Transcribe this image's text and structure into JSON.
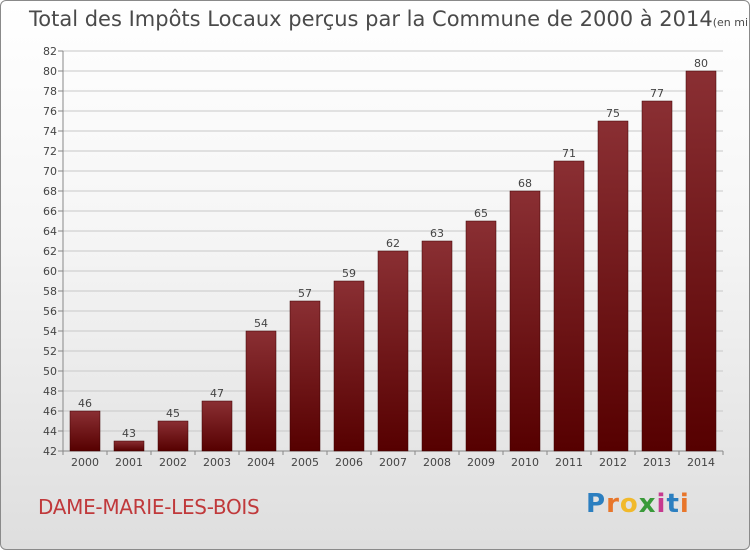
{
  "title": "Total des Impôts Locaux perçus par la Commune de 2000 à 2014",
  "title_unit": "(en milliers d'€)",
  "commune": "DAME-MARIE-LES-BOIS",
  "logo": {
    "letters": [
      "P",
      "r",
      "o",
      "x",
      "i",
      "t",
      "i"
    ],
    "colors": [
      "#2c7fc0",
      "#e8762b",
      "#f1b92b",
      "#3a9a3a",
      "#c63a8f",
      "#2c7fc0",
      "#e8762b"
    ]
  },
  "colors": {
    "bar_top": "#8a2f33",
    "bar_bottom": "#560000",
    "grid": "#c8c8c8",
    "text": "#444444",
    "commune": "#c0393b"
  },
  "chart_data": {
    "type": "bar",
    "title": "Total des Impôts Locaux perçus par la Commune de 2000 à 2014",
    "ylabel": "en milliers d'€",
    "categories": [
      "2000",
      "2001",
      "2002",
      "2003",
      "2004",
      "2005",
      "2006",
      "2007",
      "2008",
      "2009",
      "2010",
      "2011",
      "2012",
      "2013",
      "2014"
    ],
    "values": [
      46,
      43,
      45,
      47,
      54,
      57,
      59,
      62,
      63,
      65,
      68,
      71,
      75,
      77,
      80
    ],
    "ylim": [
      42,
      82
    ],
    "ytick_step": 2,
    "grid": true
  }
}
